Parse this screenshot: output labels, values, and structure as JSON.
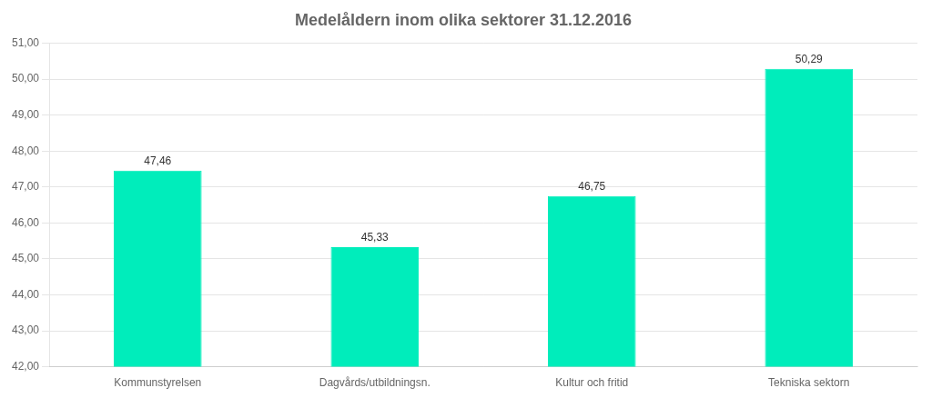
{
  "chart_data": {
    "type": "bar",
    "title": "Medelåldern inom olika sektorer 31.12.2016",
    "categories": [
      "Kommunstyrelsen",
      "Dagvårds/utbildningsn.",
      "Kultur och fritid",
      "Tekniska sektorn"
    ],
    "values": [
      47.46,
      45.33,
      46.75,
      50.29
    ],
    "value_labels": [
      "47,46",
      "45,33",
      "46,75",
      "50,29"
    ],
    "data_labels": true,
    "color": "#00EDBB",
    "ylim": [
      42.0,
      51.0
    ],
    "yticks": [
      {
        "value": 42.0,
        "label": "42,00"
      },
      {
        "value": 43.0,
        "label": "43,00"
      },
      {
        "value": 44.0,
        "label": "44,00"
      },
      {
        "value": 45.0,
        "label": "45,00"
      },
      {
        "value": 46.0,
        "label": "46,00"
      },
      {
        "value": 47.0,
        "label": "47,00"
      },
      {
        "value": 48.0,
        "label": "48,00"
      },
      {
        "value": 49.0,
        "label": "49,00"
      },
      {
        "value": 50.0,
        "label": "50,00"
      },
      {
        "value": 51.0,
        "label": "51,00"
      }
    ],
    "grid": true
  }
}
